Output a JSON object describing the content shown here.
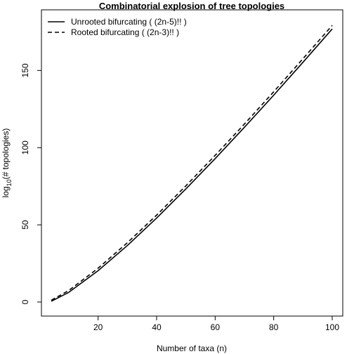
{
  "chart_data": {
    "type": "line",
    "title": "Combinatorial explosion of tree topologies",
    "xlabel": "Number of taxa (n)",
    "ylabel": {
      "prefix": "log",
      "subscript": "10",
      "suffix": "(# topologies)"
    },
    "xlim": [
      4,
      100
    ],
    "ylim": [
      0,
      182
    ],
    "xticks": [
      20,
      40,
      60,
      80,
      100
    ],
    "yticks": [
      0,
      50,
      100,
      150
    ],
    "grid": false,
    "legend_position": "top-left",
    "x": [
      4,
      10,
      20,
      30,
      40,
      50,
      60,
      70,
      80,
      90,
      100
    ],
    "series": [
      {
        "name": "Unrooted bifurcating ( (2n-5)!! )",
        "style": "solid",
        "color": "#000000",
        "values": [
          0.48,
          6.3,
          20.3,
          36.6,
          54.4,
          73.3,
          92.9,
          113.2,
          134.0,
          155.3,
          176.9
        ]
      },
      {
        "name": "Rooted bifurcating ( (2n-3)!! )",
        "style": "dashed",
        "color": "#000000",
        "values": [
          1.18,
          7.5,
          21.9,
          38.4,
          56.3,
          75.3,
          95.0,
          115.3,
          136.2,
          157.6,
          179.2
        ]
      }
    ]
  }
}
